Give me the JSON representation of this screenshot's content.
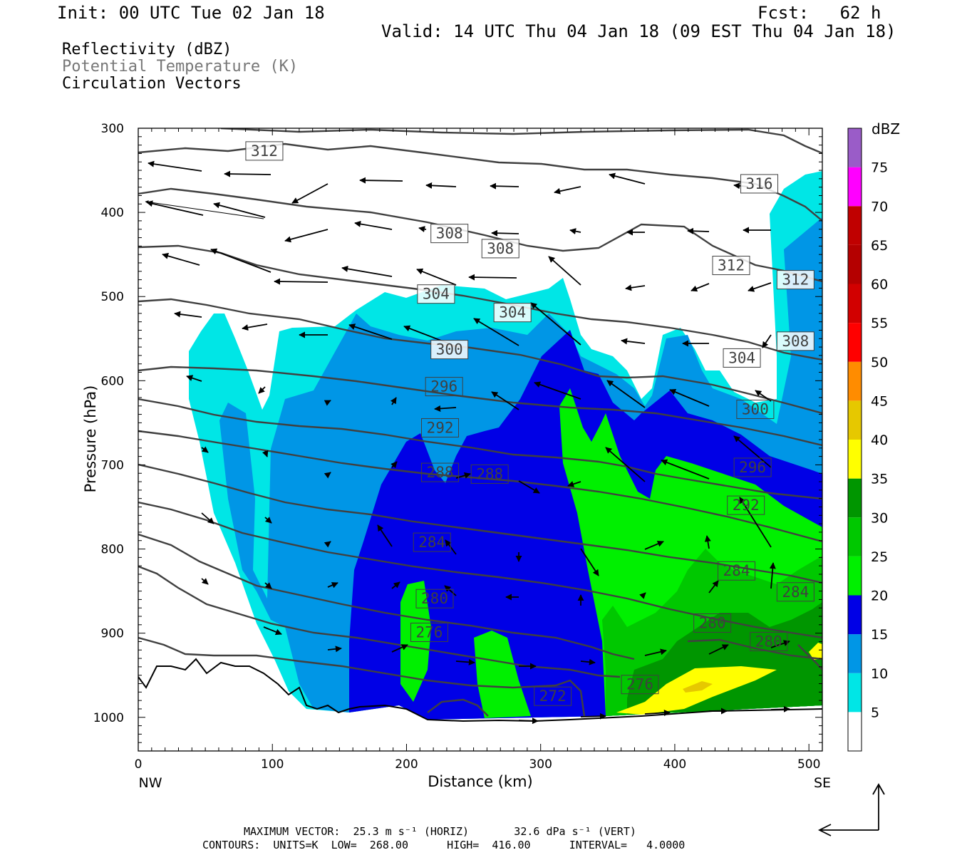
{
  "header": {
    "init": "Init: 00 UTC Tue 02 Jan 18",
    "fcst": "Fcst:   62 h",
    "valid": "Valid: 14 UTC Thu 04 Jan 18 (09 EST Thu 04 Jan 18)",
    "field1": "Reflectivity (dBZ)",
    "field2": "Potential Temperature (K)",
    "field3": "Circulation Vectors"
  },
  "footer": {
    "line1": "MAXIMUM VECTOR:  25.3 m s⁻¹ (HORIZ)       32.6 dPa s⁻¹ (VERT)",
    "line2": "CONTOURS:  UNITS=K  LOW=  268.00      HIGH=  416.00      INTERVAL=   4.0000"
  },
  "colors": {
    "dbz_5": "#00e6e6",
    "dbz_10": "#0096e6",
    "dbz_15": "#0000e6",
    "dbz_20": "#00f000",
    "dbz_25": "#00c800",
    "dbz_30": "#009600",
    "dbz_35": "#ffff00",
    "dbz_40": "#e6c800",
    "dbz_45": "#ff8c00",
    "dbz_50": "#ff0000",
    "dbz_55": "#d20000",
    "dbz_60": "#b40000",
    "dbz_65": "#c00000",
    "dbz_70": "#ff00ff",
    "dbz_75": "#9a5cc8",
    "contour": "#404040"
  },
  "chart_data": {
    "type": "cross-section",
    "xlabel": "Distance (km)",
    "ylabel": "Pressure (hPa)",
    "xlim": [
      0,
      510
    ],
    "ylim": [
      1040,
      300
    ],
    "x_ticks": [
      0,
      100,
      200,
      300,
      400,
      500
    ],
    "y_ticks": [
      300,
      400,
      500,
      600,
      700,
      800,
      900,
      1000
    ],
    "x_end_labels": {
      "left": "NW",
      "right": "SE"
    },
    "colorbar": {
      "unit": "dBZ",
      "levels": [
        5,
        10,
        15,
        20,
        25,
        30,
        35,
        40,
        45,
        50,
        55,
        60,
        65,
        70,
        75
      ]
    },
    "theta_contours": {
      "units": "K",
      "low": 268,
      "high": 416,
      "interval": 4,
      "labels": [
        {
          "value": "312",
          "x": 94,
          "p": 327
        },
        {
          "value": "316",
          "x": 463,
          "p": 366
        },
        {
          "value": "308",
          "x": 232,
          "p": 425
        },
        {
          "value": "308",
          "x": 270,
          "p": 443
        },
        {
          "value": "312",
          "x": 442,
          "p": 463
        },
        {
          "value": "312",
          "x": 490,
          "p": 480
        },
        {
          "value": "304",
          "x": 222,
          "p": 497
        },
        {
          "value": "304",
          "x": 279,
          "p": 519
        },
        {
          "value": "308",
          "x": 490,
          "p": 553
        },
        {
          "value": "300",
          "x": 232,
          "p": 563
        },
        {
          "value": "304",
          "x": 450,
          "p": 573
        },
        {
          "value": "296",
          "x": 228,
          "p": 607
        },
        {
          "value": "300",
          "x": 460,
          "p": 634
        },
        {
          "value": "292",
          "x": 225,
          "p": 656
        },
        {
          "value": "288",
          "x": 225,
          "p": 709
        },
        {
          "value": "288",
          "x": 262,
          "p": 711
        },
        {
          "value": "296",
          "x": 458,
          "p": 703
        },
        {
          "value": "292",
          "x": 453,
          "p": 748
        },
        {
          "value": "284",
          "x": 219,
          "p": 792
        },
        {
          "value": "284",
          "x": 446,
          "p": 826
        },
        {
          "value": "284",
          "x": 490,
          "p": 851
        },
        {
          "value": "280",
          "x": 221,
          "p": 859
        },
        {
          "value": "280",
          "x": 428,
          "p": 888
        },
        {
          "value": "276",
          "x": 217,
          "p": 899
        },
        {
          "value": "280",
          "x": 470,
          "p": 910
        },
        {
          "value": "276",
          "x": 374,
          "p": 961
        },
        {
          "value": "272",
          "x": 309,
          "p": 975
        }
      ]
    }
  }
}
